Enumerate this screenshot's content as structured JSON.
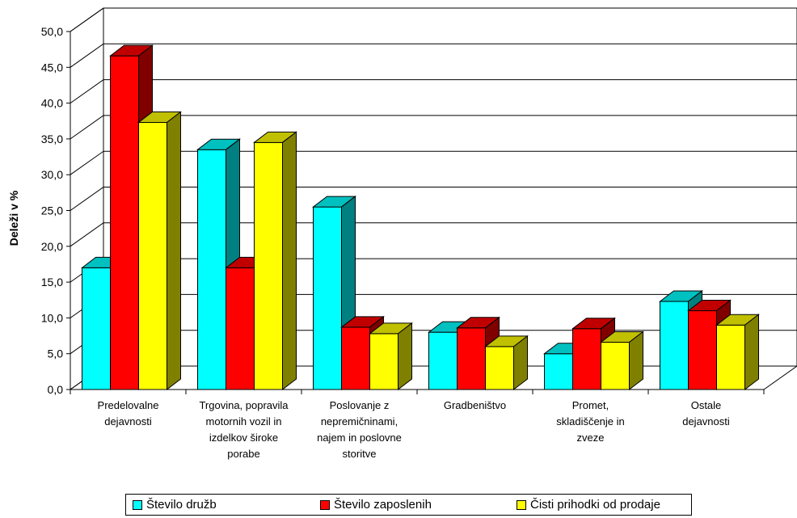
{
  "chart_data": {
    "type": "bar",
    "title": "",
    "xlabel": "",
    "ylabel": "Deleži v %",
    "ylim": [
      0,
      50
    ],
    "y_tick_step": 5,
    "y_tick_labels": [
      "0,0",
      "5,0",
      "10,0",
      "15,0",
      "20,0",
      "25,0",
      "30,0",
      "35,0",
      "40,0",
      "45,0",
      "50,0"
    ],
    "grid": true,
    "legend_position": "bottom",
    "categories": [
      [
        "Predelovalne",
        "dejavnosti"
      ],
      [
        "Trgovina, popravila",
        "motornih vozil in",
        "izdelkov široke",
        "porabe"
      ],
      [
        "Poslovanje z",
        "nepremičninami,",
        "najem in poslovne",
        "storitve"
      ],
      [
        "Gradbeništvo"
      ],
      [
        "Promet,",
        "skladiščenje in",
        "zveze"
      ],
      [
        "Ostale",
        "dejavnosti"
      ]
    ],
    "series": [
      {
        "name": "Število družb",
        "color": "#00ffff",
        "top_color": "#00c0c0",
        "side_color": "#008080",
        "values": [
          17.0,
          33.5,
          25.5,
          8.0,
          5.0,
          12.3
        ]
      },
      {
        "name": "Število zaposlenih",
        "color": "#ff0000",
        "top_color": "#c00000",
        "side_color": "#800000",
        "values": [
          46.6,
          17.0,
          8.7,
          8.6,
          8.5,
          11.0
        ]
      },
      {
        "name": "Čisti prihodki od prodaje",
        "color": "#ffff00",
        "top_color": "#c0c000",
        "side_color": "#808000",
        "values": [
          37.3,
          34.5,
          7.8,
          6.0,
          6.6,
          9.0
        ]
      }
    ]
  }
}
